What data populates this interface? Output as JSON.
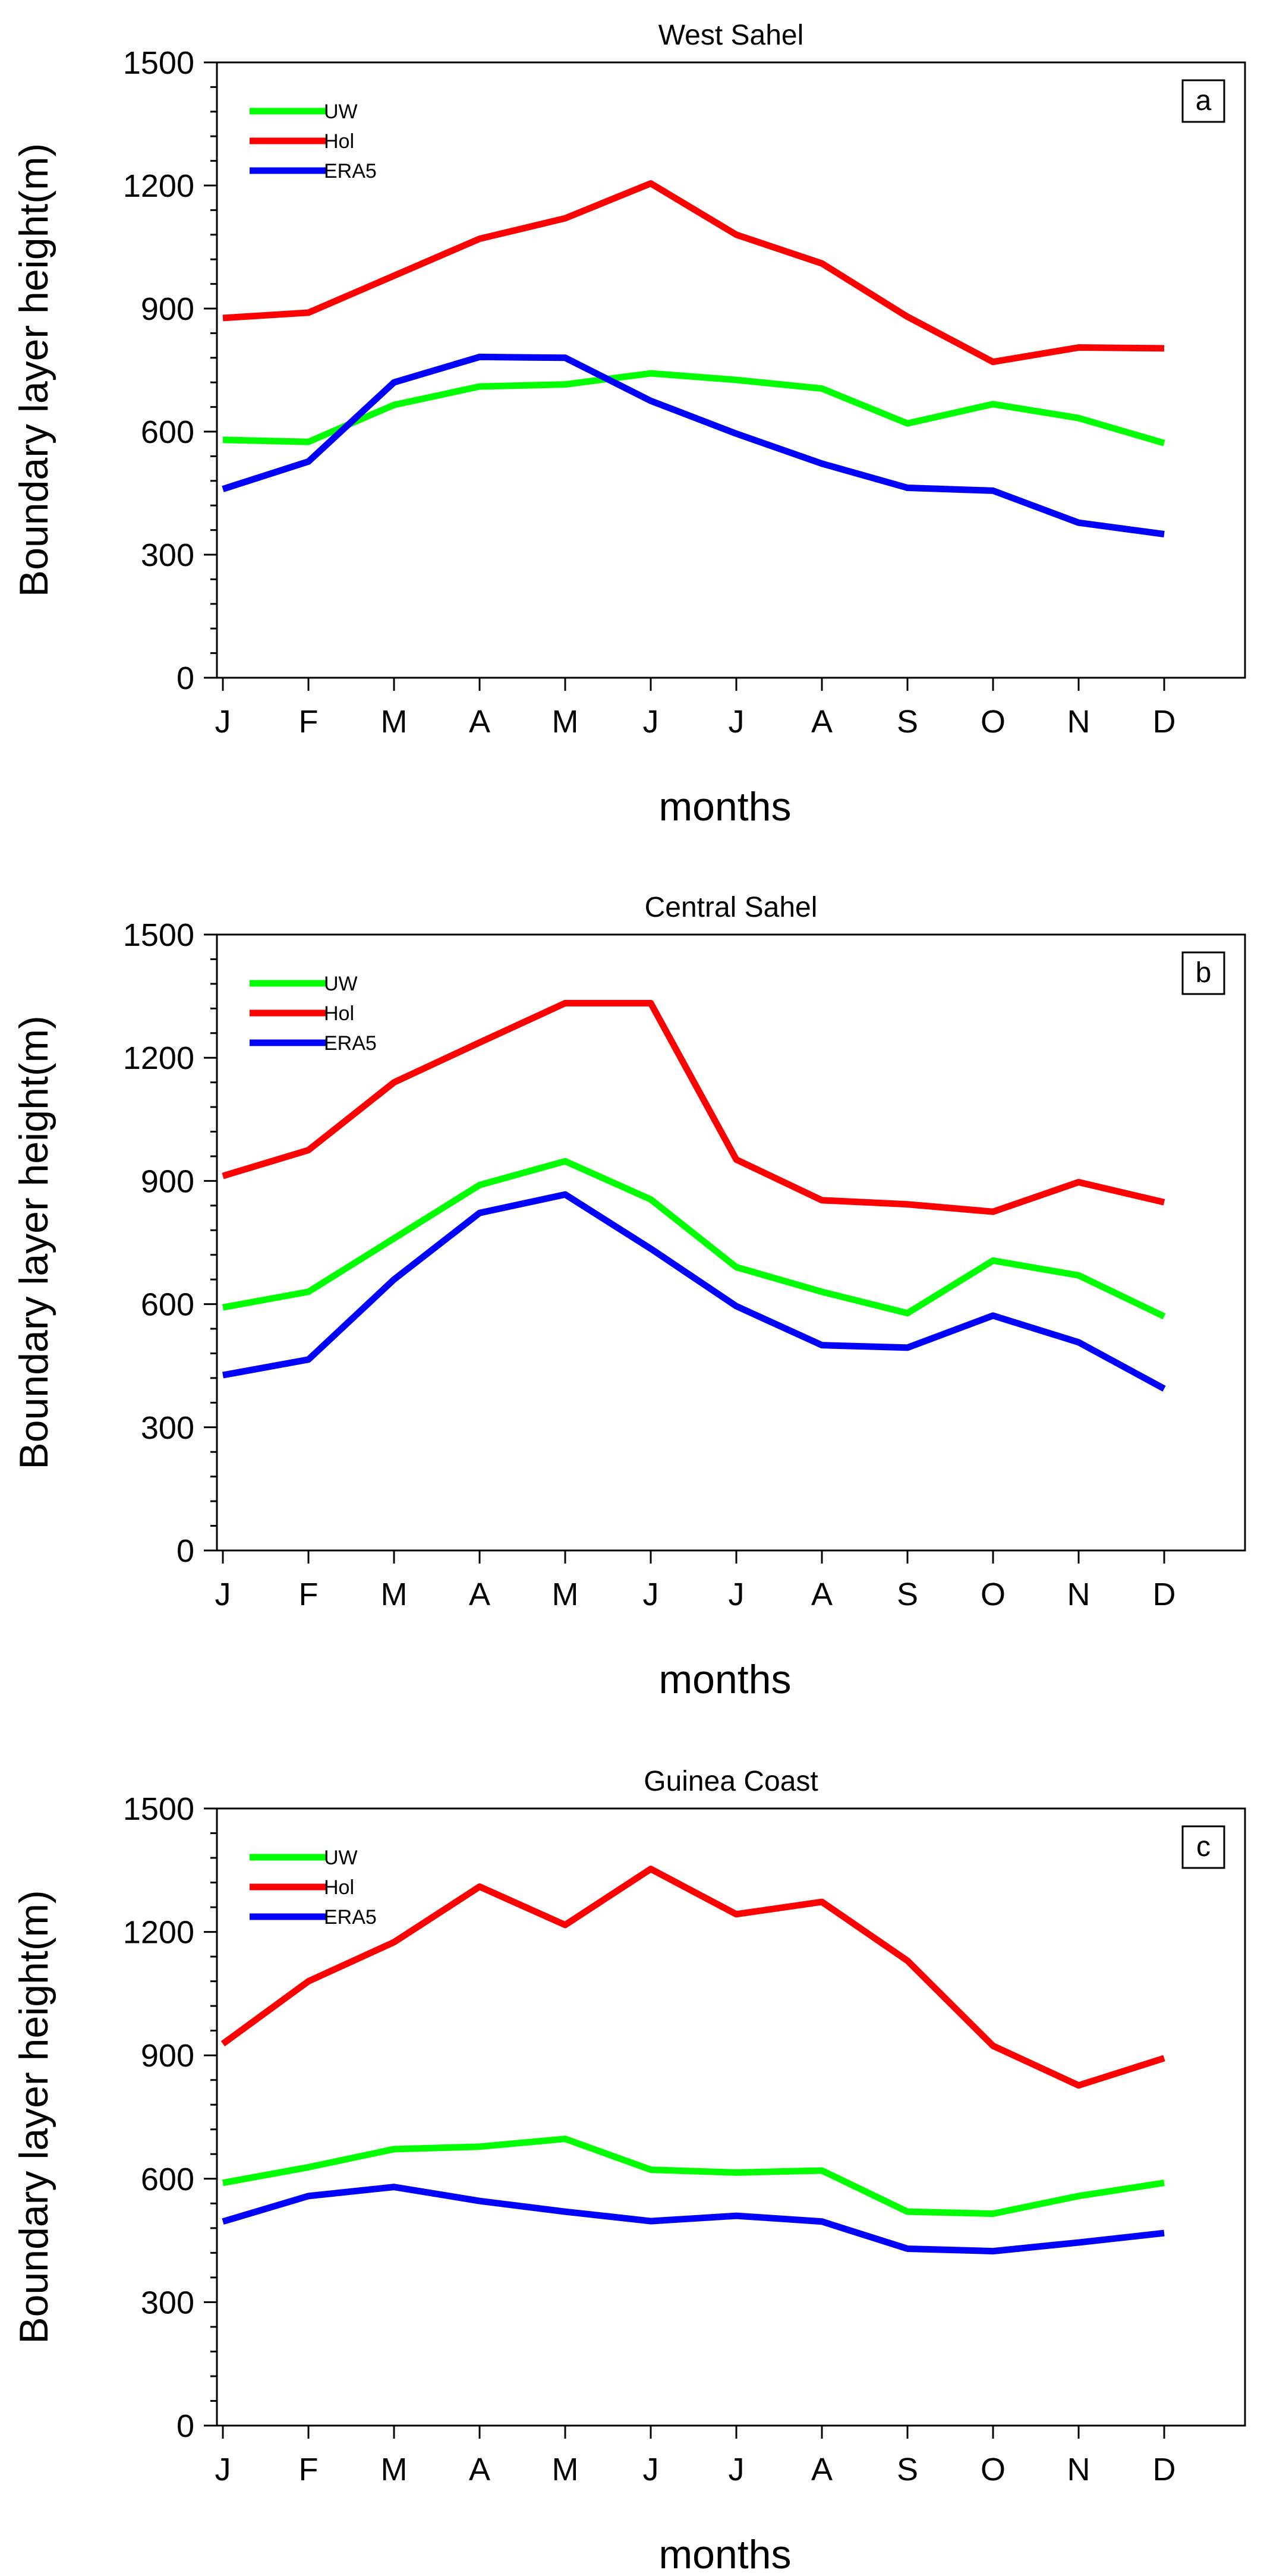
{
  "chart_data": [
    {
      "type": "line",
      "title": "West Sahel",
      "panel_label": "a",
      "xlabel": "months",
      "ylabel": "Boundary layer height(m)",
      "categories": [
        "J",
        "F",
        "M",
        "A",
        "M",
        "J",
        "J",
        "A",
        "S",
        "O",
        "N",
        "D"
      ],
      "ylim": [
        0,
        1500
      ],
      "yticks": [
        0,
        300,
        600,
        900,
        1200,
        1500
      ],
      "yticks_minor_step": 60,
      "series": [
        {
          "name": "UW",
          "color": "#00ff00",
          "values": [
            580,
            575,
            665,
            710,
            715,
            742,
            726,
            705,
            620,
            667,
            633,
            572
          ]
        },
        {
          "name": "Hol",
          "color": "#ff0000",
          "values": [
            877,
            890,
            980,
            1070,
            1120,
            1205,
            1080,
            1010,
            880,
            770,
            805,
            803
          ]
        },
        {
          "name": "ERA5",
          "color": "#0000ff",
          "values": [
            460,
            527,
            720,
            782,
            780,
            675,
            595,
            522,
            463,
            456,
            378,
            350
          ]
        }
      ]
    },
    {
      "type": "line",
      "title": "Central Sahel",
      "panel_label": "b",
      "xlabel": "months",
      "ylabel": "Boundary layer height(m)",
      "categories": [
        "J",
        "F",
        "M",
        "A",
        "M",
        "J",
        "J",
        "A",
        "S",
        "O",
        "N",
        "D"
      ],
      "ylim": [
        0,
        1500
      ],
      "yticks": [
        0,
        300,
        600,
        900,
        1200,
        1500
      ],
      "yticks_minor_step": 60,
      "series": [
        {
          "name": "UW",
          "color": "#00ff00",
          "values": [
            592,
            630,
            760,
            890,
            948,
            855,
            690,
            630,
            578,
            706,
            670,
            570
          ]
        },
        {
          "name": "Hol",
          "color": "#ff0000",
          "values": [
            912,
            975,
            1140,
            1237,
            1333,
            1333,
            952,
            853,
            843,
            825,
            897,
            848
          ]
        },
        {
          "name": "ERA5",
          "color": "#0000ff",
          "values": [
            427,
            465,
            660,
            822,
            867,
            735,
            595,
            500,
            494,
            572,
            507,
            394
          ]
        }
      ]
    },
    {
      "type": "line",
      "title": "Guinea Coast",
      "panel_label": "c",
      "xlabel": "months",
      "ylabel": "Boundary layer height(m)",
      "categories": [
        "J",
        "F",
        "M",
        "A",
        "M",
        "J",
        "J",
        "A",
        "S",
        "O",
        "N",
        "D"
      ],
      "ylim": [
        0,
        1500
      ],
      "yticks": [
        0,
        300,
        600,
        900,
        1200,
        1500
      ],
      "yticks_minor_step": 60,
      "series": [
        {
          "name": "UW",
          "color": "#00ff00",
          "values": [
            590,
            628,
            672,
            678,
            697,
            622,
            615,
            620,
            520,
            515,
            558,
            590
          ]
        },
        {
          "name": "Hol",
          "color": "#ff0000",
          "values": [
            928,
            1080,
            1175,
            1310,
            1217,
            1353,
            1243,
            1273,
            1130,
            923,
            827,
            893
          ]
        },
        {
          "name": "ERA5",
          "color": "#0000ff",
          "values": [
            496,
            558,
            580,
            546,
            520,
            497,
            510,
            496,
            430,
            424,
            445,
            468
          ]
        }
      ]
    }
  ]
}
